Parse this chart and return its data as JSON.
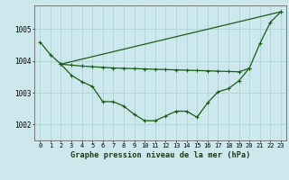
{
  "title": "Graphe pression niveau de la mer (hPa)",
  "bg_color": "#cce8ec",
  "grid_color": "#a8cfd4",
  "line_color": "#1a5c1a",
  "ylim": [
    1001.5,
    1005.75
  ],
  "xlim": [
    -0.5,
    23.5
  ],
  "yticks": [
    1002,
    1003,
    1004,
    1005
  ],
  "ytick_labels": [
    "1002",
    "1003",
    "1004",
    "1005"
  ],
  "xtick_labels": [
    "0",
    "1",
    "2",
    "3",
    "4",
    "5",
    "6",
    "7",
    "8",
    "9",
    "10",
    "11",
    "12",
    "13",
    "14",
    "15",
    "16",
    "17",
    "18",
    "19",
    "20",
    "21",
    "22",
    "23"
  ],
  "line1_x": [
    0,
    1,
    2,
    3,
    4,
    5,
    6,
    7,
    8,
    9,
    10,
    11,
    12,
    13,
    14,
    15,
    16,
    17,
    18,
    19,
    20,
    21,
    22,
    23
  ],
  "line1_y": [
    1004.6,
    1004.2,
    1003.9,
    1003.55,
    1003.35,
    1003.2,
    1002.72,
    1002.72,
    1002.58,
    1002.32,
    1002.12,
    1002.12,
    1002.27,
    1002.42,
    1002.42,
    1002.23,
    1002.68,
    1003.03,
    1003.13,
    1003.38,
    1003.78,
    1004.55,
    1005.22,
    1005.55
  ],
  "line2_x": [
    2,
    3,
    4,
    5,
    6,
    7,
    8,
    9,
    10,
    11,
    12,
    13,
    14,
    15,
    16,
    17,
    18,
    19,
    20
  ],
  "line2_y": [
    1003.9,
    1003.87,
    1003.84,
    1003.82,
    1003.8,
    1003.78,
    1003.77,
    1003.76,
    1003.75,
    1003.74,
    1003.73,
    1003.72,
    1003.71,
    1003.7,
    1003.69,
    1003.68,
    1003.67,
    1003.66,
    1003.77
  ],
  "line3_x": [
    2,
    23
  ],
  "line3_y": [
    1003.9,
    1005.55
  ]
}
